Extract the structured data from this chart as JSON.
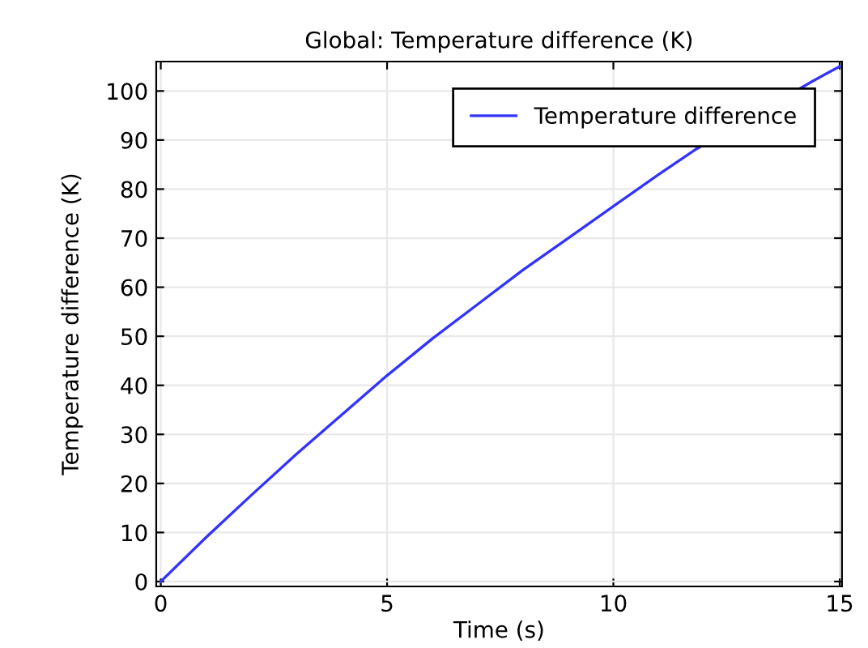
{
  "chart_data": {
    "type": "line",
    "title": "Global: Temperature difference (K)",
    "xlabel": "Time (s)",
    "ylabel": "Temperature difference (K)",
    "x": [
      0,
      1,
      2,
      3,
      4,
      5,
      6,
      7,
      8,
      9,
      10,
      11,
      11.8,
      14.4,
      15
    ],
    "series": [
      {
        "name": "Temperature difference",
        "color": "#3333ff",
        "values": [
          0,
          9,
          17.6,
          26,
          34,
          42,
          49.5,
          56.5,
          63.5,
          70,
          76.5,
          83,
          88,
          102,
          105
        ]
      }
    ],
    "xlim": [
      -0.1,
      15.05
    ],
    "ylim": [
      -1,
      106
    ],
    "xticks": [
      0,
      5,
      10,
      15
    ],
    "yticks": [
      0,
      10,
      20,
      30,
      40,
      50,
      60,
      70,
      80,
      90,
      100
    ],
    "grid": true,
    "legend": "top right",
    "line_style": "solid",
    "marker": "none"
  }
}
